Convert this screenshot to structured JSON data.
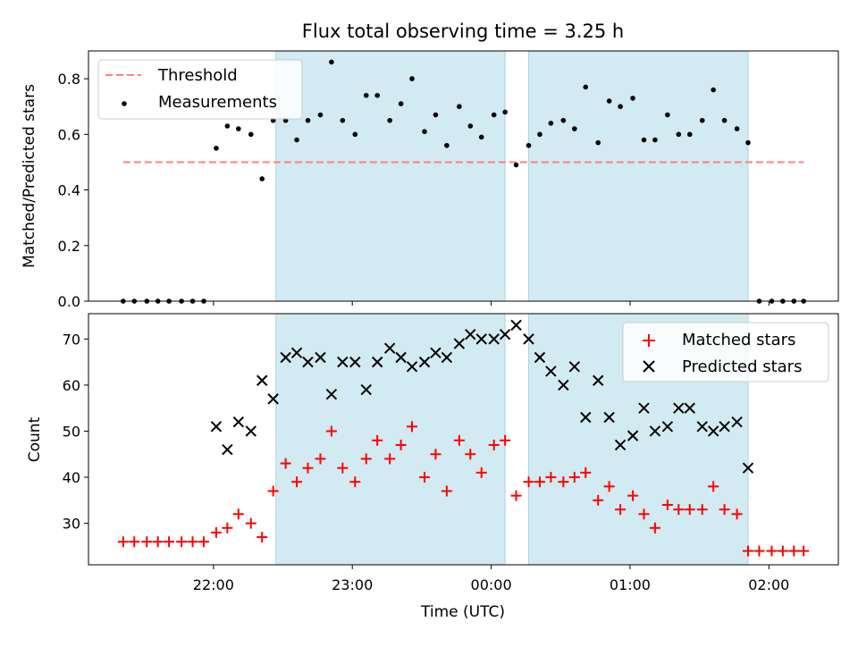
{
  "chart_data": {
    "type": "scatter",
    "title": "Flux total observing time = 3.25 h",
    "xlabel": "Time (UTC)",
    "x_unit": "hours since 00:00 UTC",
    "x_tick_values": [
      -2,
      -1,
      0,
      1,
      2
    ],
    "x_tick_labels": [
      "22:00",
      "23:00",
      "00:00",
      "01:00",
      "02:00"
    ],
    "xlim": [
      -2.9,
      2.5
    ],
    "shaded_intervals": [
      [
        -1.55,
        0.1
      ],
      [
        0.27,
        1.85
      ]
    ],
    "colors": {
      "shade": "#add8e6",
      "matched": "#ff0000",
      "predicted": "#000000",
      "threshold": "#ff7f7f",
      "measurement": "#000000"
    },
    "top_panel": {
      "ylabel": "Matched/Predicted stars",
      "ylim": [
        0,
        0.9
      ],
      "y_ticks": [
        0.0,
        0.2,
        0.4,
        0.6,
        0.8
      ],
      "y_tick_labels": [
        "0.0",
        "0.2",
        "0.4",
        "0.6",
        "0.8"
      ],
      "legend": {
        "placement": "upper left",
        "entries": [
          "Threshold",
          "Measurements"
        ]
      },
      "threshold": {
        "value": 0.5,
        "x_range": [
          -2.65,
          2.25
        ]
      },
      "measurements": {
        "x": [
          -2.65,
          -2.57,
          -2.48,
          -2.4,
          -2.32,
          -2.23,
          -2.15,
          -2.07,
          -1.98,
          -1.9,
          -1.82,
          -1.73,
          -1.65,
          -1.57,
          -1.48,
          -1.4,
          -1.32,
          -1.23,
          -1.15,
          -1.07,
          -0.98,
          -0.9,
          -0.82,
          -0.73,
          -0.65,
          -0.57,
          -0.48,
          -0.4,
          -0.32,
          -0.23,
          -0.15,
          -0.07,
          0.02,
          0.1,
          0.18,
          0.27,
          0.35,
          0.43,
          0.52,
          0.6,
          0.68,
          0.77,
          0.85,
          0.93,
          1.02,
          1.1,
          1.18,
          1.27,
          1.35,
          1.43,
          1.52,
          1.6,
          1.68,
          1.77,
          1.85,
          1.93,
          2.02,
          2.1,
          2.18,
          2.25
        ],
        "y": [
          0,
          0,
          0,
          0,
          0,
          0,
          0,
          0,
          0.55,
          0.63,
          0.62,
          0.6,
          0.44,
          0.65,
          0.65,
          0.58,
          0.65,
          0.67,
          0.86,
          0.65,
          0.6,
          0.74,
          0.74,
          0.65,
          0.71,
          0.8,
          0.61,
          0.67,
          0.56,
          0.7,
          0.63,
          0.59,
          0.67,
          0.68,
          0.49,
          0.56,
          0.6,
          0.64,
          0.65,
          0.62,
          0.77,
          0.57,
          0.72,
          0.7,
          0.73,
          0.58,
          0.58,
          0.67,
          0.6,
          0.6,
          0.65,
          0.76,
          0.65,
          0.62,
          0.57,
          0,
          0,
          0,
          0,
          0
        ]
      }
    },
    "bottom_panel": {
      "ylabel": "Count",
      "ylim": [
        21,
        75.5
      ],
      "y_ticks": [
        30,
        40,
        50,
        60,
        70
      ],
      "y_tick_labels": [
        "30",
        "40",
        "50",
        "60",
        "70"
      ],
      "legend": {
        "placement": "upper right",
        "entries": [
          "Matched stars",
          "Predicted stars"
        ]
      },
      "matched": {
        "name": "Matched stars",
        "x": [
          -2.65,
          -2.57,
          -2.48,
          -2.4,
          -2.32,
          -2.23,
          -2.15,
          -2.07,
          -1.98,
          -1.9,
          -1.82,
          -1.73,
          -1.65,
          -1.57,
          -1.48,
          -1.4,
          -1.32,
          -1.23,
          -1.15,
          -1.07,
          -0.98,
          -0.9,
          -0.82,
          -0.73,
          -0.65,
          -0.57,
          -0.48,
          -0.4,
          -0.32,
          -0.23,
          -0.15,
          -0.07,
          0.02,
          0.1,
          0.18,
          0.27,
          0.35,
          0.43,
          0.52,
          0.6,
          0.68,
          0.77,
          0.85,
          0.93,
          1.02,
          1.1,
          1.18,
          1.27,
          1.35,
          1.43,
          1.52,
          1.6,
          1.68,
          1.77,
          1.85,
          1.93,
          2.02,
          2.1,
          2.18,
          2.25
        ],
        "y": [
          26,
          26,
          26,
          26,
          26,
          26,
          26,
          26,
          28,
          29,
          32,
          30,
          27,
          37,
          43,
          39,
          42,
          44,
          50,
          42,
          39,
          44,
          48,
          44,
          47,
          51,
          40,
          45,
          37,
          48,
          45,
          41,
          47,
          48,
          36,
          39,
          39,
          40,
          39,
          40,
          41,
          35,
          38,
          33,
          36,
          32,
          29,
          34,
          33,
          33,
          33,
          38,
          33,
          32,
          24,
          24,
          24,
          24,
          24,
          24
        ]
      },
      "predicted": {
        "name": "Predicted stars",
        "x": [
          -1.98,
          -1.9,
          -1.82,
          -1.73,
          -1.65,
          -1.57,
          -1.48,
          -1.4,
          -1.32,
          -1.23,
          -1.15,
          -1.07,
          -0.98,
          -0.9,
          -0.82,
          -0.73,
          -0.65,
          -0.57,
          -0.48,
          -0.4,
          -0.32,
          -0.23,
          -0.15,
          -0.07,
          0.02,
          0.1,
          0.18,
          0.27,
          0.35,
          0.43,
          0.52,
          0.6,
          0.68,
          0.77,
          0.85,
          0.93,
          1.02,
          1.1,
          1.18,
          1.27,
          1.35,
          1.43,
          1.52,
          1.6,
          1.68,
          1.77,
          1.85
        ],
        "y": [
          51,
          46,
          52,
          50,
          61,
          57,
          66,
          67,
          65,
          66,
          58,
          65,
          65,
          59,
          65,
          68,
          66,
          64,
          65,
          67,
          66,
          69,
          71,
          70,
          70,
          71,
          73,
          70,
          66,
          63,
          60,
          64,
          53,
          61,
          53,
          47,
          49,
          55,
          50,
          51,
          55,
          55,
          51,
          50,
          51,
          52,
          42
        ]
      }
    }
  }
}
